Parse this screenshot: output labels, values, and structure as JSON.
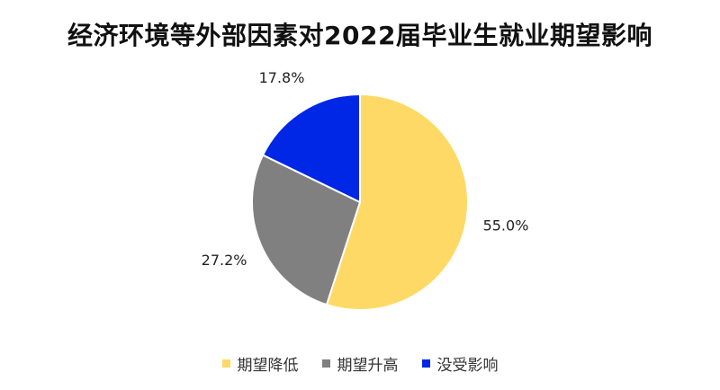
{
  "chart_data": {
    "type": "pie",
    "title": "经济环境等外部因素对2022届毕业生就业期望影响",
    "categories": [
      "期望降低",
      "期望升高",
      "没受影响"
    ],
    "values": [
      55.0,
      27.2,
      17.8
    ],
    "labels": [
      "55.0%",
      "27.2%",
      "17.8%"
    ],
    "colors": [
      "#FFD966",
      "#808080",
      "#0027E6"
    ],
    "legend_position": "bottom"
  }
}
